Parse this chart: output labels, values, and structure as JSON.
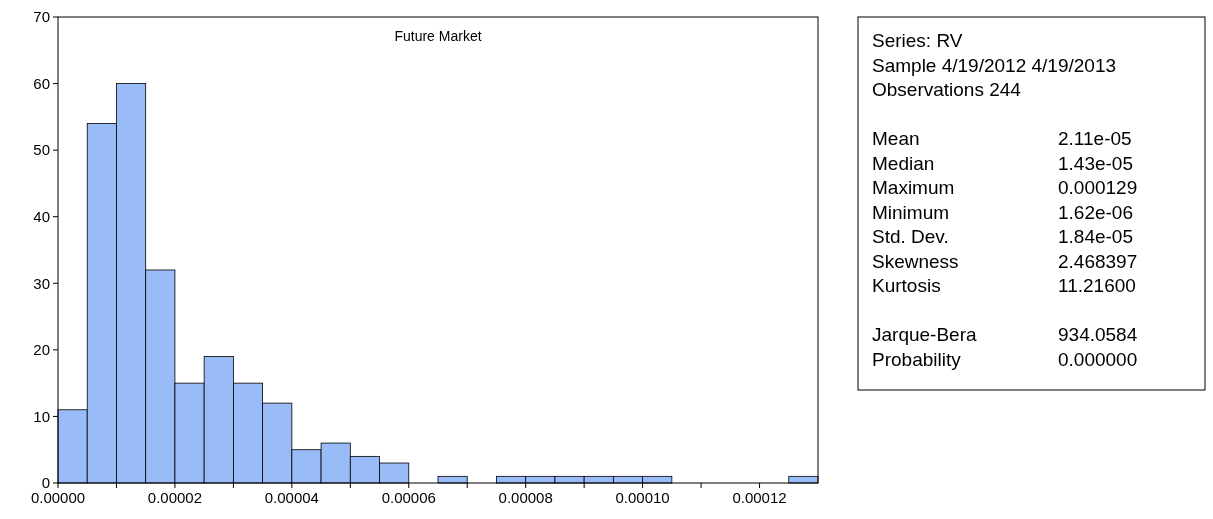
{
  "chart_data": [
    {
      "type": "histogram",
      "title": "Future Market",
      "bins": [
        0,
        5e-06,
        1e-05,
        1.5e-05,
        2e-05,
        2.5e-05,
        3e-05,
        3.5e-05,
        4e-05,
        4.5e-05,
        5e-05,
        5.5e-05,
        6e-05,
        6.5e-05,
        7e-05,
        7.5e-05,
        8e-05,
        8.5e-05,
        9e-05,
        9.5e-05,
        0.0001,
        0.000105,
        0.00011,
        0.000115,
        0.00012,
        0.000125,
        0.00013
      ],
      "values": [
        11,
        54,
        60,
        32,
        15,
        19,
        15,
        12,
        5,
        6,
        4,
        3,
        0,
        1,
        0,
        1,
        1,
        1,
        1,
        1,
        1,
        0,
        0,
        0,
        0,
        1
      ],
      "color": "#99bbf7",
      "xlim": [
        0,
        0.00013
      ],
      "xticks": [
        {
          "value": 0,
          "label": "0.00000"
        },
        {
          "value": 1e-05,
          "label": null
        },
        {
          "value": 2e-05,
          "label": "0.00002"
        },
        {
          "value": 3e-05,
          "label": null
        },
        {
          "value": 4e-05,
          "label": "0.00004"
        },
        {
          "value": 5e-05,
          "label": null
        },
        {
          "value": 6e-05,
          "label": "0.00006"
        },
        {
          "value": 7e-05,
          "label": null
        },
        {
          "value": 8e-05,
          "label": "0.00008"
        },
        {
          "value": 9e-05,
          "label": null
        },
        {
          "value": 0.0001,
          "label": "0.00010"
        },
        {
          "value": 0.00011,
          "label": null
        },
        {
          "value": 0.00012,
          "label": "0.00012"
        }
      ],
      "ylim": [
        0,
        70
      ],
      "yticks": [
        0,
        10,
        20,
        30,
        40,
        50,
        60,
        70
      ],
      "grid": false
    },
    {
      "type": "other",
      "annotations": [
        "Series: RV",
        "Sample 4/19/2012 4/19/2013",
        "Observations 244"
      ],
      "categories": [
        "Mean",
        "Median",
        "Maximum",
        "Minimum",
        "Std. Dev.",
        "Skewness",
        "Kurtosis",
        null,
        "Jarque-Bera",
        "Probability"
      ],
      "value_labels": [
        "2.11e-05",
        "1.43e-05",
        "0.000129",
        "1.62e-06",
        "1.84e-05",
        "2.468397",
        "11.21600",
        null,
        "934.0584",
        "0.000000"
      ]
    }
  ]
}
